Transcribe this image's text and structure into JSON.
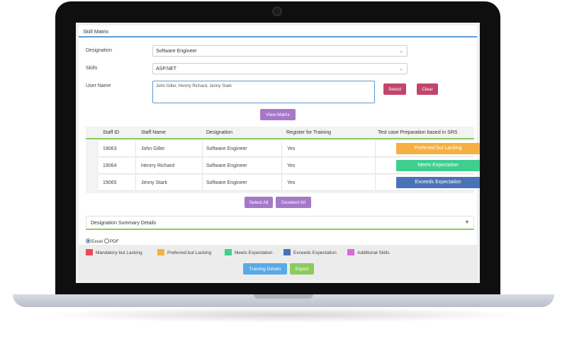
{
  "panel": {
    "title": "Skill Matrix"
  },
  "form": {
    "designation_label": "Designation",
    "designation_value": "Software Engineer",
    "skills_label": "Skills",
    "skills_value": "ASP.NET",
    "username_label": "User Name",
    "username_value": "John Giller, Henrry Richard, Jenny Stark"
  },
  "buttons": {
    "select": "Select",
    "clear": "Clear",
    "view_matrix": "View Matrix",
    "select_all": "Select All",
    "deselect_all": "Deselect All",
    "training_details": "Training Details",
    "export": "Export"
  },
  "table": {
    "headers": [
      "Staff ID",
      "Staff Name",
      "Designation",
      "Register for Training",
      "Test case Preparation based in SRS"
    ],
    "rows": [
      {
        "id": "19063",
        "name": "John Giller",
        "designation": "Software Engineer",
        "register": "Yes",
        "status": "Preferred but Lacking",
        "status_color": "#f5b041"
      },
      {
        "id": "19064",
        "name": "Henrry Richard",
        "designation": "Software Engineer",
        "register": "Yes",
        "status": "Meets Expectation",
        "status_color": "#3ecf8e"
      },
      {
        "id": "19065",
        "name": "Jenny Stark",
        "designation": "Software Engineer",
        "register": "Yes",
        "status": "Exceeds Expectation",
        "status_color": "#4a72b8"
      }
    ]
  },
  "summary": {
    "title": "Designation Summary Details",
    "toggle_icon": "plus-icon"
  },
  "export_options": {
    "excel": "Excel",
    "pdf": "PDF",
    "selected": "Excel"
  },
  "legend": [
    {
      "label": "Mandatory but Lacking",
      "color": "#e84b5a"
    },
    {
      "label": "Preferred but Lacking",
      "color": "#f5b041"
    },
    {
      "label": "Meets Expectation",
      "color": "#3ecf8e"
    },
    {
      "label": "Exceeds Expectation",
      "color": "#4a72b8"
    },
    {
      "label": "Additional Skills",
      "color": "#d86ad8"
    }
  ]
}
